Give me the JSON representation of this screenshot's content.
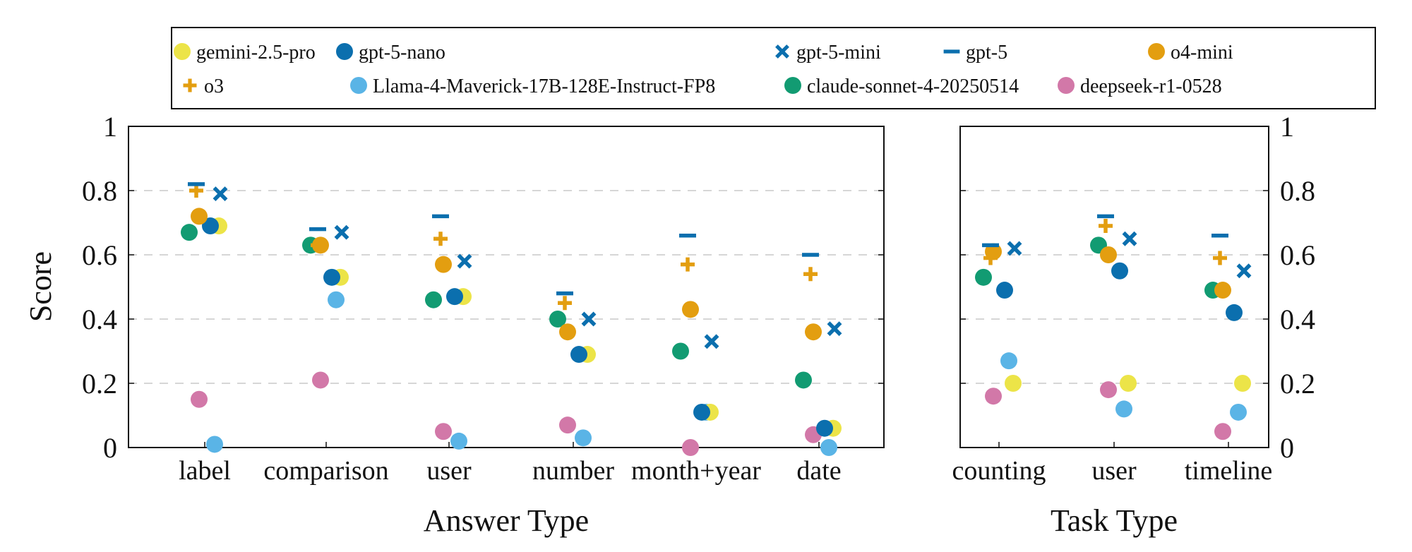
{
  "chart_data": {
    "type": "scatter",
    "ylabel": "Score",
    "ylim": [
      0,
      1
    ],
    "yticks": [
      0,
      0.2,
      0.4,
      0.6,
      0.8,
      1
    ],
    "ytick_labels": [
      "0",
      "0.2",
      "0.4",
      "0.6",
      "0.8",
      "1"
    ],
    "grid": true,
    "legend": {
      "placement": "top",
      "entries": [
        {
          "name": "gemini-2.5-pro",
          "color": "#ece448",
          "marker": "circle"
        },
        {
          "name": "gpt-5-nano",
          "color": "#0b6fae",
          "marker": "circle"
        },
        {
          "name": "gpt-5-mini",
          "color": "#0b6fae",
          "marker": "x"
        },
        {
          "name": "gpt-5",
          "color": "#0b6fae",
          "marker": "dash"
        },
        {
          "name": "o4-mini",
          "color": "#e39e10",
          "marker": "circle"
        },
        {
          "name": "o3",
          "color": "#e39e10",
          "marker": "plus"
        },
        {
          "name": "Llama-4-Maverick-17B-128E-Instruct-FP8",
          "color": "#5ab4e6",
          "marker": "circle"
        },
        {
          "name": "claude-sonnet-4-20250514",
          "color": "#129b72",
          "marker": "circle"
        },
        {
          "name": "deepseek-r1-0528",
          "color": "#d278a8",
          "marker": "circle"
        }
      ]
    },
    "panels": [
      {
        "xlabel": "Answer Type",
        "categories": [
          "label",
          "comparison",
          "user",
          "number",
          "month+year",
          "date"
        ],
        "series": {
          "gemini-2.5-pro": [
            0.69,
            0.53,
            0.47,
            0.29,
            0.11,
            0.06
          ],
          "gpt-5-nano": [
            0.69,
            0.53,
            0.47,
            0.29,
            0.11,
            0.06
          ],
          "gpt-5-mini": [
            0.79,
            0.67,
            0.58,
            0.4,
            0.33,
            0.37
          ],
          "gpt-5": [
            0.82,
            0.68,
            0.72,
            0.48,
            0.66,
            0.6
          ],
          "o4-mini": [
            0.72,
            0.63,
            0.57,
            0.36,
            0.43,
            0.36
          ],
          "o3": [
            0.8,
            0.63,
            0.65,
            0.45,
            0.57,
            0.54
          ],
          "Llama-4-Maverick-17B-128E-Instruct-FP8": [
            0.01,
            0.46,
            0.02,
            0.03,
            0.11,
            0.0
          ],
          "claude-sonnet-4-20250514": [
            0.67,
            0.63,
            0.46,
            0.4,
            0.3,
            0.21
          ],
          "deepseek-r1-0528": [
            0.15,
            0.21,
            0.05,
            0.07,
            0.0,
            0.04
          ]
        }
      },
      {
        "xlabel": "Task Type",
        "categories": [
          "counting",
          "user",
          "timeline"
        ],
        "series": {
          "gemini-2.5-pro": [
            0.2,
            0.2,
            0.2
          ],
          "gpt-5-nano": [
            0.49,
            0.55,
            0.42
          ],
          "gpt-5-mini": [
            0.62,
            0.65,
            0.55
          ],
          "gpt-5": [
            0.63,
            0.72,
            0.66
          ],
          "o4-mini": [
            0.61,
            0.6,
            0.49
          ],
          "o3": [
            0.59,
            0.69,
            0.59
          ],
          "Llama-4-Maverick-17B-128E-Instruct-FP8": [
            0.27,
            0.12,
            0.11
          ],
          "claude-sonnet-4-20250514": [
            0.53,
            0.63,
            0.49
          ],
          "deepseek-r1-0528": [
            0.16,
            0.18,
            0.05
          ]
        }
      }
    ]
  }
}
